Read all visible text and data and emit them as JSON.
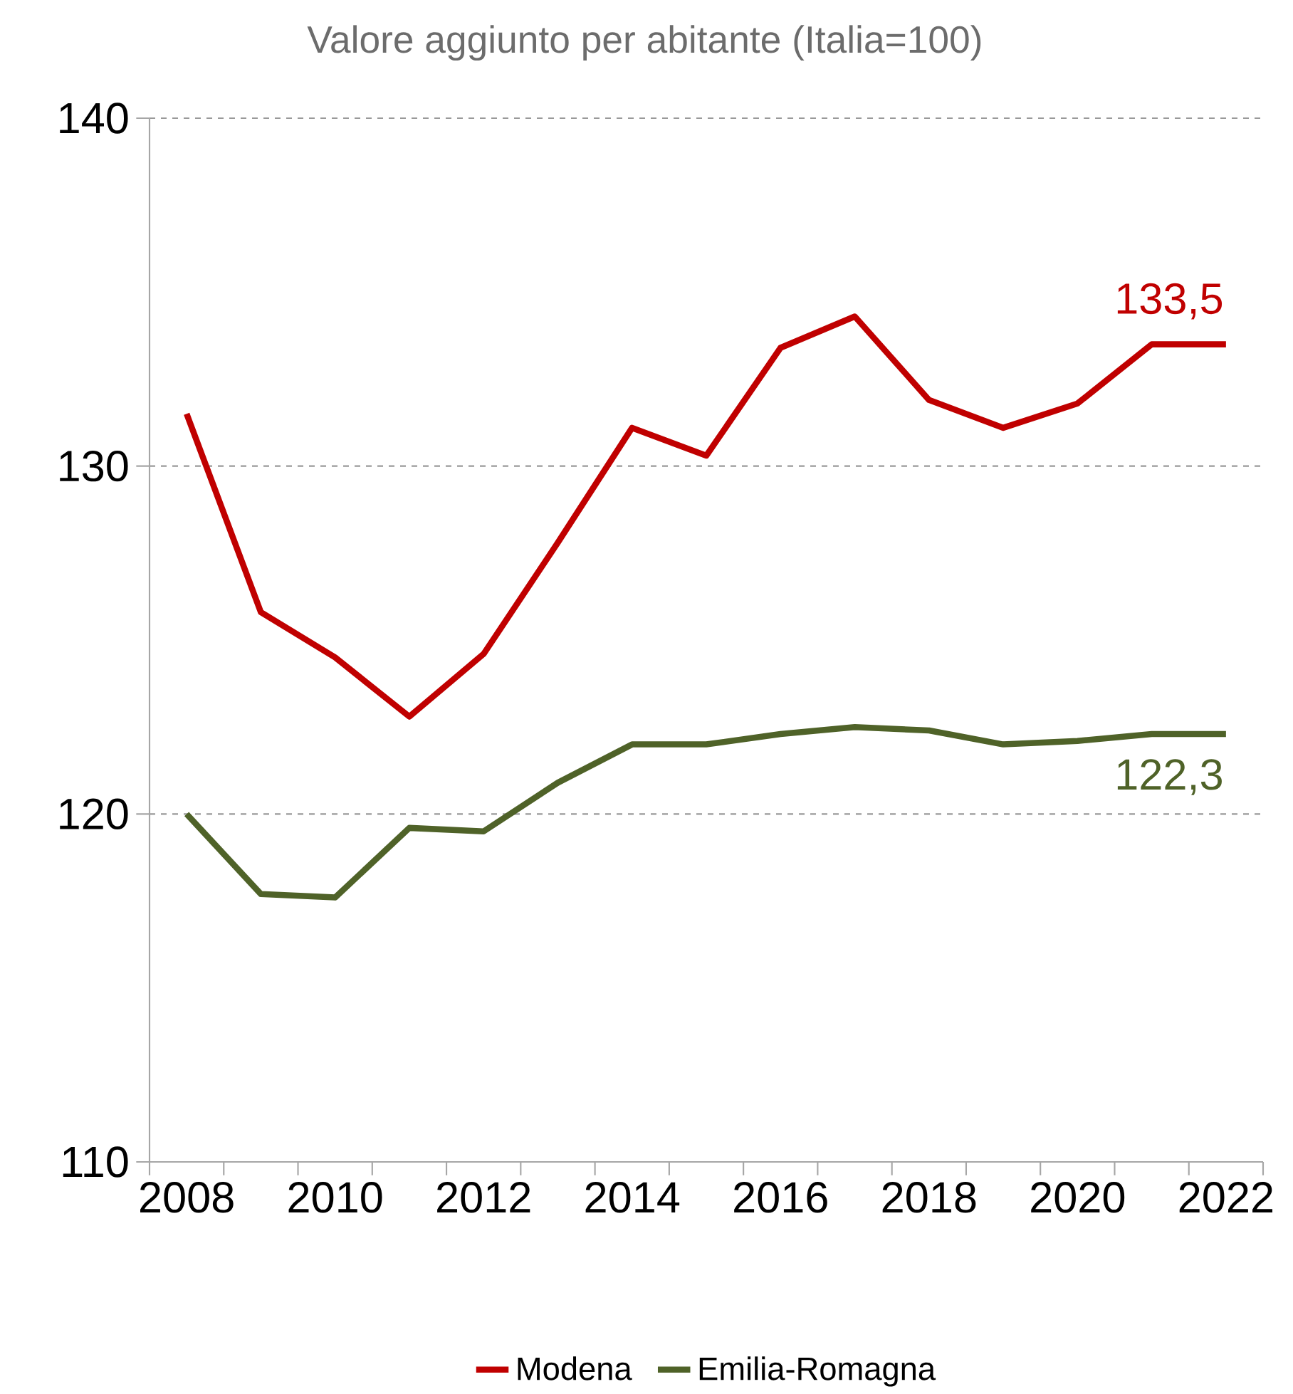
{
  "chart_data": {
    "type": "line",
    "title": "Valore aggiunto per abitante (Italia=100)",
    "categories": [
      "2008",
      null,
      "2010",
      null,
      "2012",
      null,
      "2014",
      null,
      "2016",
      null,
      "2018",
      null,
      "2020",
      null,
      "2022"
    ],
    "series": [
      {
        "name": "Modena",
        "color": "#c00000",
        "values": [
          131.5,
          125.8,
          124.5,
          122.8,
          124.6,
          127.8,
          131.1,
          130.3,
          133.4,
          134.3,
          131.9,
          131.1,
          131.8,
          133.5,
          133.5
        ]
      },
      {
        "name": "Emilia-Romagna",
        "color": "#4f6228",
        "values": [
          120.0,
          117.7,
          117.6,
          119.6,
          119.5,
          120.9,
          122.0,
          122.0,
          122.3,
          122.5,
          122.4,
          122.0,
          122.1,
          122.3,
          122.3
        ]
      }
    ],
    "annotations": [
      {
        "text": "133,5",
        "x": "2022",
        "y": 133.5
      },
      {
        "text": "122,3",
        "x": "2022",
        "y": 122.3
      }
    ],
    "ylim": [
      110,
      140
    ],
    "yticks": [
      110,
      120,
      130,
      140
    ],
    "grid": "y",
    "legend": "bottom",
    "marker": "none",
    "line_style": "solid"
  }
}
